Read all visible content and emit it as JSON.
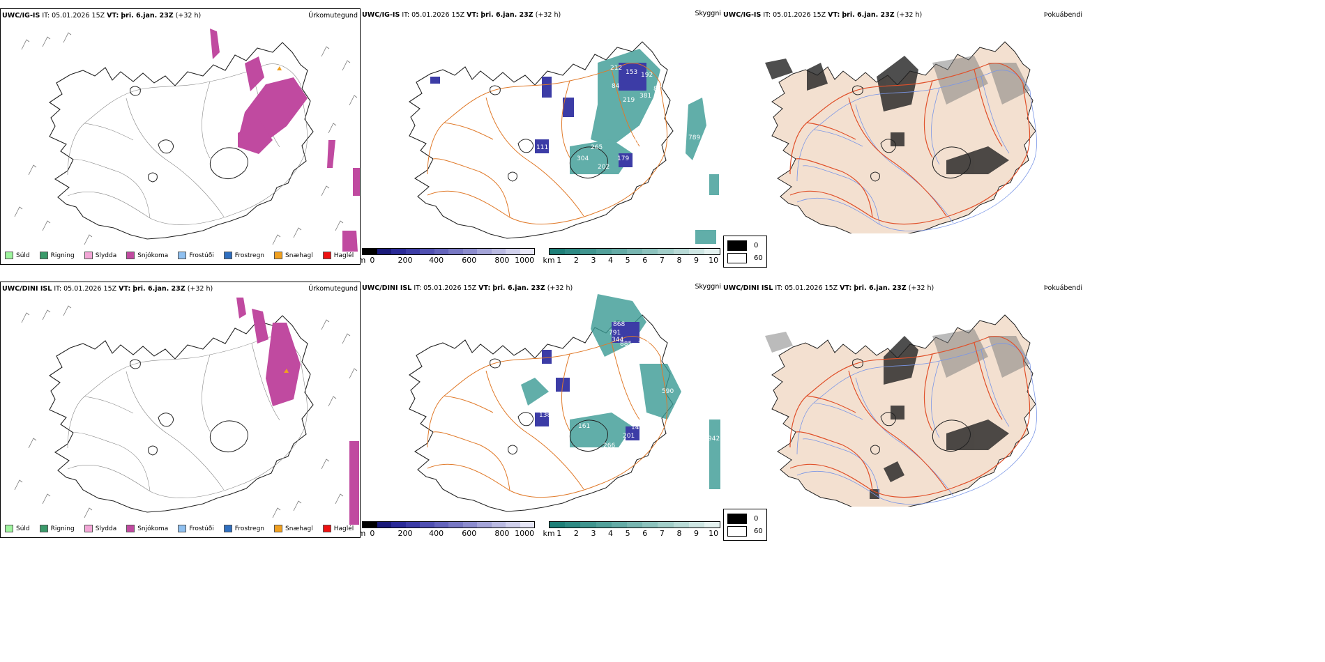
{
  "rows": [
    {
      "model": "UWC/IG-IS",
      "it_label": "IT:",
      "it_value": "05.01.2026 15Z",
      "vt_label": "VT:",
      "vt_value": "þri. 6.jan. 23Z",
      "lead": "(+32 h)"
    },
    {
      "model": "UWC/DINI ISL",
      "it_label": "IT:",
      "it_value": "05.01.2026 15Z",
      "vt_label": "VT:",
      "vt_value": "þri. 6.jan. 23Z",
      "lead": "(+32 h)"
    }
  ],
  "panel_titles": {
    "precip_type": "Úrkomutegund",
    "ceiling": "Skyggni",
    "fog": "Þokuábendi"
  },
  "precip_legend": [
    {
      "label": "Súld",
      "color": "#9ef59e"
    },
    {
      "label": "Rigning",
      "color": "#3a9a6a"
    },
    {
      "label": "Slydda",
      "color": "#f2a6d6"
    },
    {
      "label": "Snjókoma",
      "color": "#c04aa0"
    },
    {
      "label": "Frostúði",
      "color": "#8fc0f0"
    },
    {
      "label": "Frostregn",
      "color": "#2f6fc0"
    },
    {
      "label": "Snæhagl",
      "color": "#f0a020"
    },
    {
      "label": "Haglél",
      "color": "#ee1111"
    }
  ],
  "ceiling_colorbar": {
    "unit": "m",
    "ticks": [
      "0",
      "200",
      "400",
      "600",
      "800",
      "1000"
    ],
    "colors": [
      "#000000",
      "#1a1a7a",
      "#2a2a98",
      "#3c3ca6",
      "#5050b2",
      "#6464bc",
      "#7878c4",
      "#8c8cce",
      "#a4a4d8",
      "#babae2",
      "#d0d0ec",
      "#e6e6f6"
    ]
  },
  "visibility_colorbar": {
    "unit": "km",
    "ticks": [
      "1",
      "2",
      "3",
      "4",
      "5",
      "6",
      "7",
      "8",
      "9",
      "10"
    ],
    "colors": [
      "#1e7f78",
      "#2e8a84",
      "#40958f",
      "#52a09a",
      "#64aba6",
      "#78b6b1",
      "#8cc2bd",
      "#a2cec9",
      "#b8dad6",
      "#cee6e3",
      "#e4f2f0"
    ]
  },
  "fog_legend": [
    {
      "label": "0",
      "color": "#000000"
    },
    {
      "label": "60",
      "color": "#ffffff"
    }
  ],
  "ceiling_labels": [
    [
      "212",
      "153",
      "192",
      "84",
      "381",
      "87",
      "219",
      "259",
      "111",
      "265",
      "304",
      "179",
      "202",
      "789"
    ],
    [
      "868",
      "791",
      "344",
      "885",
      "203",
      "251",
      "590",
      "138",
      "161",
      "144",
      "201",
      "266",
      "942"
    ]
  ],
  "colors": {
    "coast": "#1a1a1a",
    "roads": "#e07a2a",
    "land_fog": "#f3e0d0",
    "roads_fog": "#e0502a",
    "rivers": "#7a96e6",
    "wind": "#555555",
    "snow": "#c04aa0",
    "vis_teal": "#3a9a94",
    "ceil_blue": "#3c3ca6"
  }
}
